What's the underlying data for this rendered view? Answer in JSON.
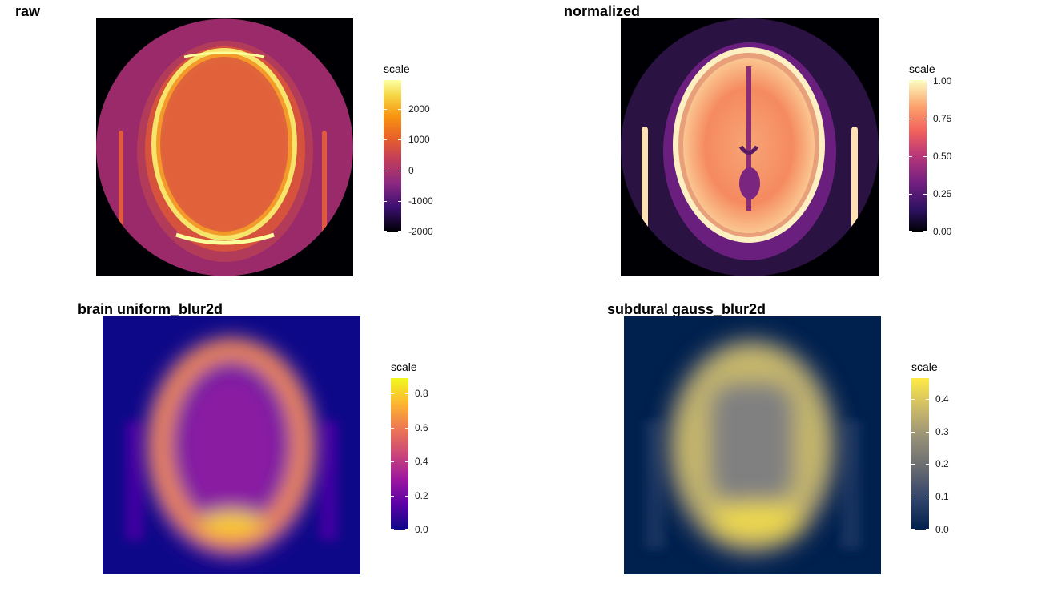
{
  "chart_data": [
    {
      "type": "heatmap",
      "title": "raw",
      "legend": {
        "title": "scale",
        "placement": "right",
        "range": [
          -2000,
          3000
        ],
        "ticks": [
          {
            "value": 2000,
            "label": "2000"
          },
          {
            "value": 1000,
            "label": "1000"
          },
          {
            "value": 0,
            "label": "0"
          },
          {
            "value": -1000,
            "label": "-1000"
          },
          {
            "value": -2000,
            "label": "-2000"
          }
        ],
        "colors": [
          "#0d0887",
          "#000004",
          "#3b0f70",
          "#8c2981",
          "#c33e5a",
          "#e8612a",
          "#f8930f",
          "#f6d746",
          "#fcffa4"
        ]
      },
      "grid": false,
      "axes": false
    },
    {
      "type": "heatmap",
      "title": "normalized",
      "legend": {
        "title": "scale",
        "placement": "right",
        "range": [
          0,
          1
        ],
        "ticks": [
          {
            "value": 1.0,
            "label": "1.00"
          },
          {
            "value": 0.75,
            "label": "0.75"
          },
          {
            "value": 0.5,
            "label": "0.50"
          },
          {
            "value": 0.25,
            "label": "0.25"
          },
          {
            "value": 0.0,
            "label": "0.00"
          }
        ],
        "colors": [
          "#000004",
          "#2c115f",
          "#721f81",
          "#b73779",
          "#f1605d",
          "#fc9f6b",
          "#fcfdbf"
        ]
      },
      "grid": false,
      "axes": false
    },
    {
      "type": "heatmap",
      "title": "brain uniform_blur2d",
      "legend": {
        "title": "scale",
        "placement": "right",
        "range": [
          0,
          0.9
        ],
        "ticks": [
          {
            "value": 0.8,
            "label": "0.8"
          },
          {
            "value": 0.6,
            "label": "0.6"
          },
          {
            "value": 0.4,
            "label": "0.4"
          },
          {
            "value": 0.2,
            "label": "0.2"
          },
          {
            "value": 0.0,
            "label": "0.0"
          }
        ],
        "colors": [
          "#0d0887",
          "#5c01a6",
          "#9c179e",
          "#cc4778",
          "#ed7953",
          "#fdb42f",
          "#f0f921"
        ]
      },
      "grid": false,
      "axes": false
    },
    {
      "type": "heatmap",
      "title": "subdural gauss_blur2d",
      "legend": {
        "title": "scale",
        "placement": "right",
        "range": [
          0,
          0.47
        ],
        "ticks": [
          {
            "value": 0.4,
            "label": "0.4"
          },
          {
            "value": 0.3,
            "label": "0.3"
          },
          {
            "value": 0.2,
            "label": "0.2"
          },
          {
            "value": 0.1,
            "label": "0.1"
          },
          {
            "value": 0.0,
            "label": "0.0"
          }
        ],
        "colors": [
          "#00204d",
          "#31446b",
          "#666970",
          "#958f78",
          "#cbba69",
          "#ffea46"
        ]
      },
      "grid": false,
      "axes": false
    }
  ]
}
